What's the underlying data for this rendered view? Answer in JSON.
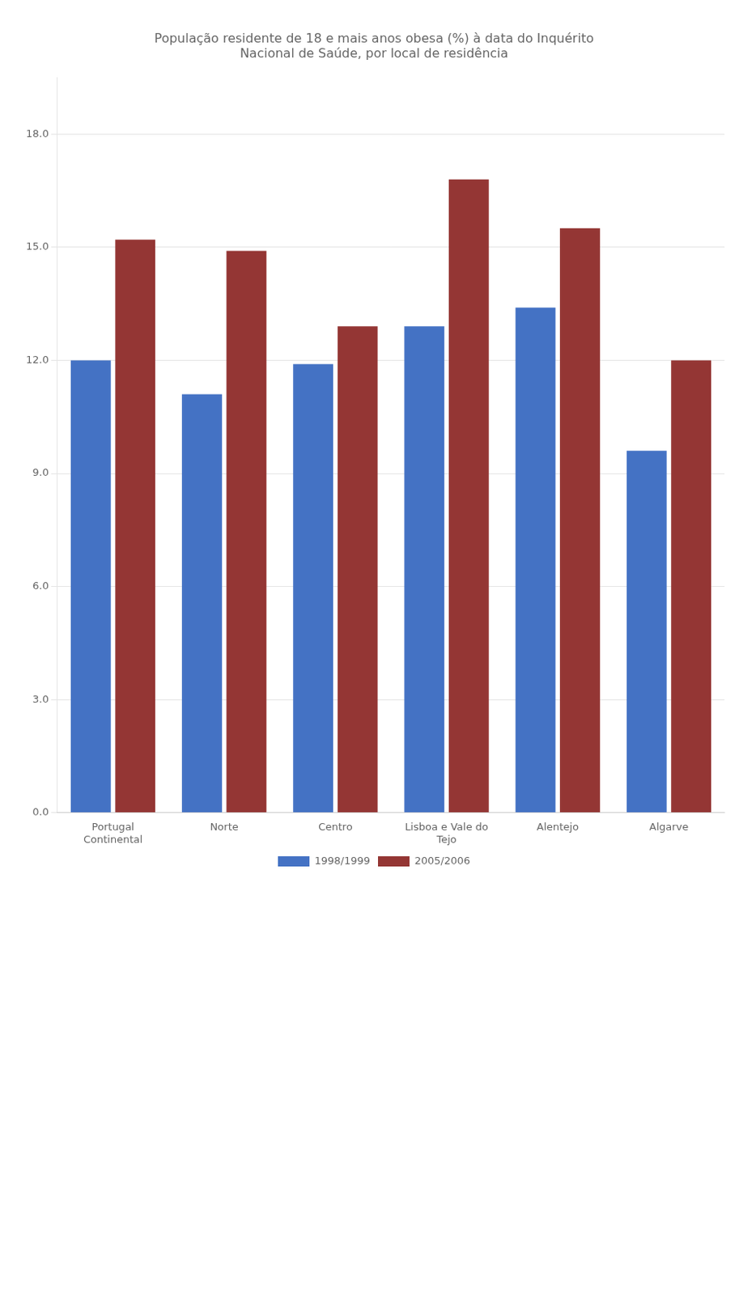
{
  "chart_data": {
    "type": "bar",
    "title": "População residente de 18 e mais anos obesa (%) à data do Inquérito\nNacional de Saúde, por local de residência",
    "categories": [
      "Portugal\nContinental",
      "Norte",
      "Centro",
      "Lisboa e Vale do\nTejo",
      "Alentejo",
      "Algarve"
    ],
    "series": [
      {
        "name": "1998/1999",
        "color": "#4472C4",
        "values": [
          12.0,
          11.1,
          11.9,
          12.9,
          13.4,
          9.6
        ]
      },
      {
        "name": "2005/2006",
        "color": "#943634",
        "values": [
          15.2,
          14.9,
          12.9,
          16.8,
          15.5,
          12.0
        ]
      }
    ],
    "ylim": [
      0.0,
      19.5
    ],
    "yticks": [
      {
        "value": 0.0,
        "label": "0.0"
      },
      {
        "value": 3.0,
        "label": "3.0"
      },
      {
        "value": 6.0,
        "label": "6.0"
      },
      {
        "value": 9.0,
        "label": "9.0"
      },
      {
        "value": 12.0,
        "label": "12.0"
      },
      {
        "value": 15.0,
        "label": "15.0"
      },
      {
        "value": 18.0,
        "label": "18.0"
      }
    ],
    "grid": true,
    "legend": "bottom"
  }
}
